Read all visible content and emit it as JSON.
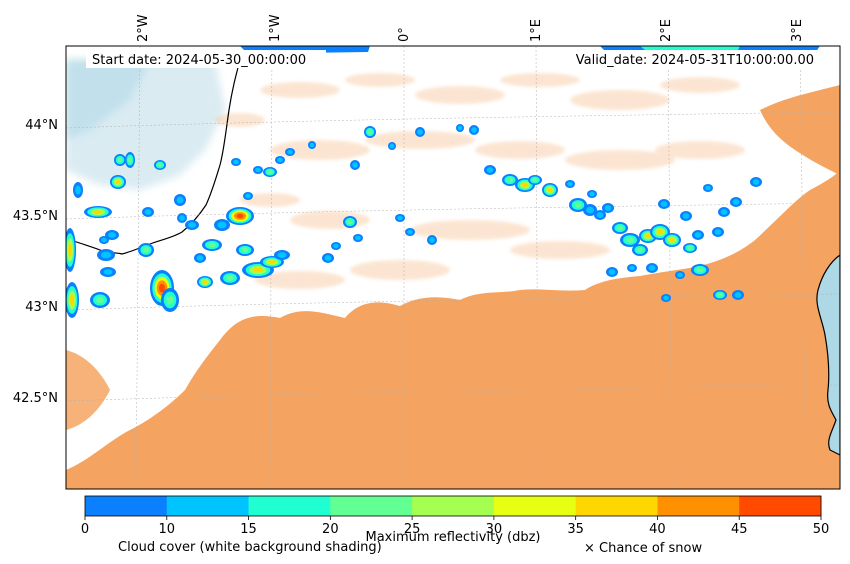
{
  "map": {
    "start_date": "Start date: 2024-05-30_00:00:00",
    "valid_date": "Valid_date: 2024-05-31T10:00:00.00",
    "lon_ticks": [
      "2°W",
      "1°W",
      "0°",
      "1°E",
      "2°E",
      "3°E"
    ],
    "lat_ticks": [
      "44°N",
      "43.5°N",
      "43°N",
      "42.5°N"
    ],
    "colors": {
      "sea": "#add8e6",
      "cloud_orange": "#f4a460",
      "land_blue_tint": "#d6e9f1"
    }
  },
  "colorbar": {
    "ticks": [
      "0",
      "10",
      "15",
      "20",
      "25",
      "30",
      "35",
      "40",
      "45",
      "50"
    ],
    "colors": [
      "#0a80ff",
      "#00c4ff",
      "#20ffd2",
      "#62ff92",
      "#a4ff50",
      "#e6ff12",
      "#ffd700",
      "#ff9100",
      "#ff4a00"
    ],
    "label": "Maximum reflectivity (dbz)",
    "cloud_cover_label": "Cloud cover (white background shading)",
    "snow_label": "× Chance of snow"
  }
}
